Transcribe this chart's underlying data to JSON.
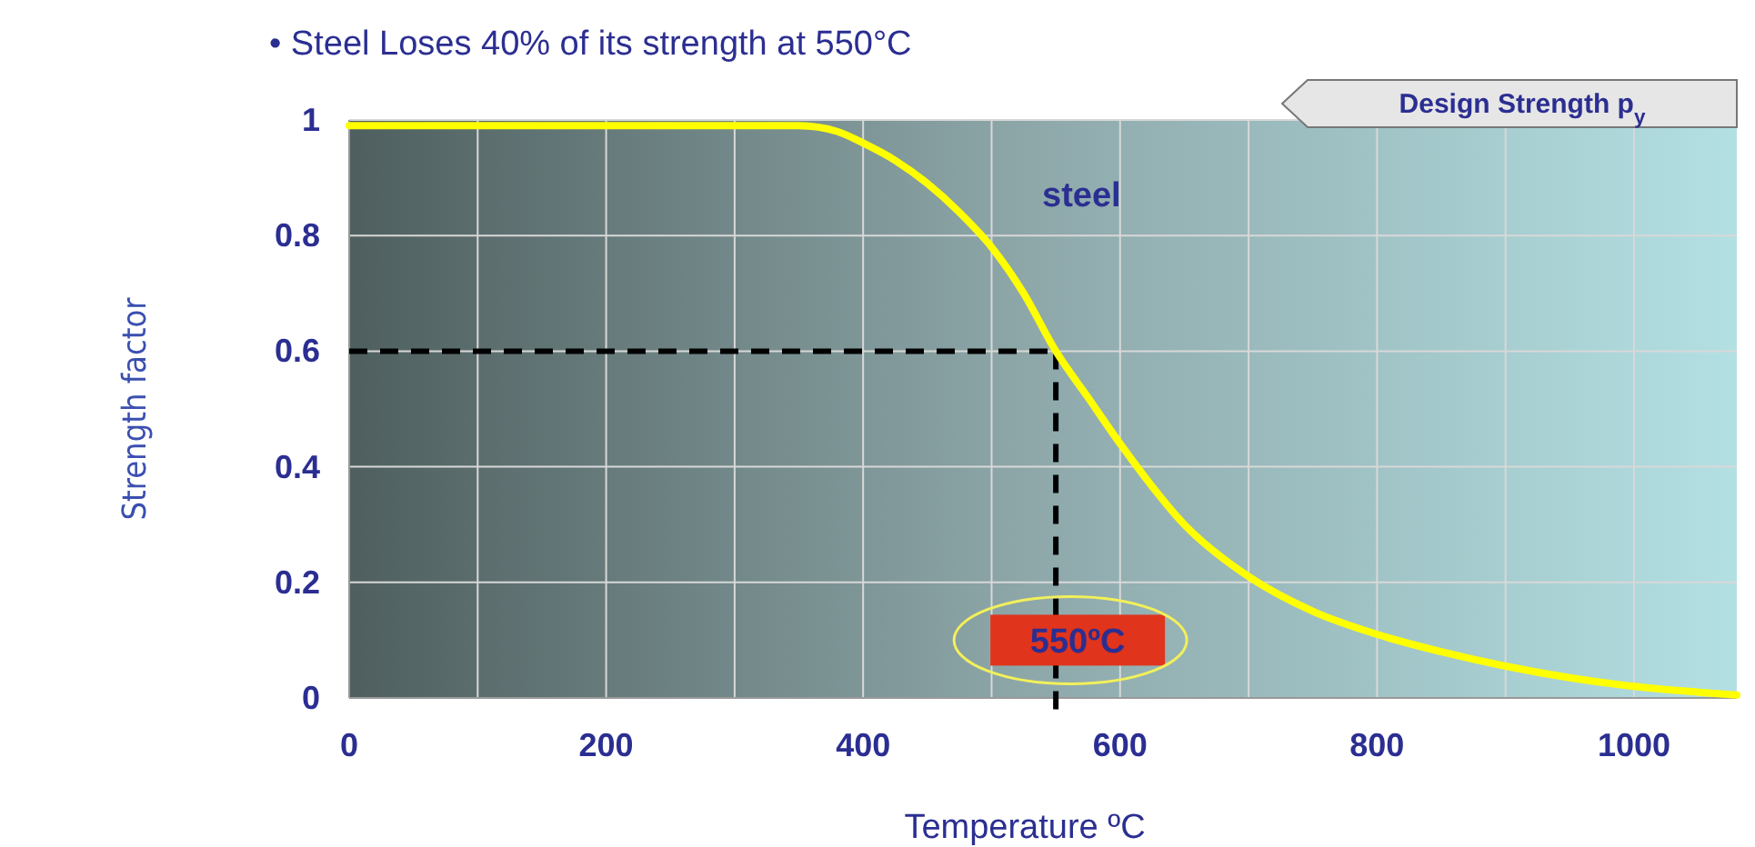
{
  "chart_data": {
    "type": "line",
    "title": "• Steel Loses 40% of its strength at 550°C",
    "xlabel": "Temperature ºC",
    "ylabel": "Strength factor",
    "x": [
      0,
      100,
      200,
      300,
      350,
      380,
      400,
      425,
      450,
      475,
      500,
      525,
      550,
      575,
      600,
      650,
      700,
      750,
      800,
      850,
      900,
      950,
      1000,
      1050,
      1080
    ],
    "series": [
      {
        "name": "steel",
        "color": "#ffff00",
        "values": [
          0.99,
          0.99,
          0.99,
          0.99,
          0.99,
          0.98,
          0.96,
          0.93,
          0.89,
          0.84,
          0.78,
          0.7,
          0.6,
          0.52,
          0.44,
          0.3,
          0.21,
          0.15,
          0.11,
          0.08,
          0.055,
          0.035,
          0.02,
          0.01,
          0.005
        ]
      }
    ],
    "xlim": [
      0,
      1080
    ],
    "ylim": [
      0,
      1
    ],
    "xticks": [
      0,
      {
        "value": 100,
        "label": null
      },
      200,
      {
        "value": 300,
        "label": null
      },
      400,
      {
        "value": 500,
        "label": null
      },
      600,
      {
        "value": 700,
        "label": null
      },
      800,
      {
        "value": 900,
        "label": null
      },
      1000
    ],
    "yticks": [
      0,
      0.2,
      0.4,
      0.6,
      0.8,
      1
    ],
    "grid": true,
    "marker": "none",
    "line_style": "solid",
    "ref_lines": [
      {
        "axis": "y",
        "value": 0.6,
        "line_style": "dashed",
        "color": "#000000"
      },
      {
        "axis": "x",
        "value": 550,
        "line_style": "dashed",
        "color": "#000000"
      }
    ],
    "annotations": [
      {
        "text": "550ºC",
        "x": 550,
        "y": 0.1
      },
      "Design Strength p$_{y}$"
    ]
  }
}
